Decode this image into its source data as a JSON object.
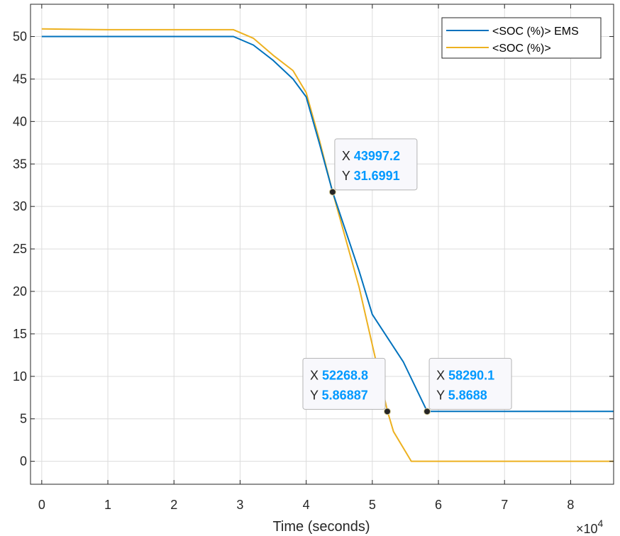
{
  "chart_data": {
    "type": "line",
    "title": "",
    "xlabel": "Time (seconds)",
    "ylabel": "",
    "x_exponent_label": "×10",
    "x_exponent_power": "4",
    "xlim": [
      -1700,
      86500
    ],
    "ylim": [
      -2.7,
      53.8
    ],
    "xticks": [
      0,
      10000,
      20000,
      30000,
      40000,
      50000,
      60000,
      70000,
      80000
    ],
    "xtick_labels": [
      "0",
      "1",
      "2",
      "3",
      "4",
      "5",
      "6",
      "7",
      "8"
    ],
    "yticks": [
      0,
      5,
      10,
      15,
      20,
      25,
      30,
      35,
      40,
      45,
      50
    ],
    "ytick_labels": [
      "0",
      "5",
      "10",
      "15",
      "20",
      "25",
      "30",
      "35",
      "40",
      "45",
      "50"
    ],
    "grid": true,
    "legend_position": "top-right",
    "series": [
      {
        "name": "<SOC (%)> EMS",
        "color": "#0072BD",
        "x": [
          0,
          29000,
          32000,
          35000,
          38000,
          40000,
          42000,
          44000,
          48000,
          50000,
          54700,
          58300,
          86500
        ],
        "y": [
          50,
          50,
          49,
          47.2,
          45,
          42.9,
          37.4,
          31.7,
          22.4,
          17.3,
          11.7,
          5.87,
          5.87
        ]
      },
      {
        "name": "<SOC (%)>",
        "color": "#EDB120",
        "x": [
          0,
          10000,
          20000,
          29000,
          32000,
          35000,
          38000,
          40000,
          42000,
          44000,
          48000,
          52300,
          53200,
          55900,
          86500
        ],
        "y": [
          50.9,
          50.8,
          50.8,
          50.8,
          49.8,
          47.8,
          46,
          43.4,
          37.8,
          31.7,
          20.5,
          5.87,
          3.5,
          0,
          0
        ]
      }
    ],
    "datatips": [
      {
        "x_label": "X",
        "x_value": "43997.2",
        "y_label": "Y",
        "y_value": "31.6991",
        "x": 43997.2,
        "y": 31.6991,
        "box_side": "right"
      },
      {
        "x_label": "X",
        "x_value": "52268.8",
        "y_label": "Y",
        "y_value": "5.86887",
        "x": 52268.8,
        "y": 5.86887,
        "box_side": "left"
      },
      {
        "x_label": "X",
        "x_value": "58290.1",
        "y_label": "Y",
        "y_value": "5.8688",
        "x": 58290.1,
        "y": 5.8688,
        "box_side": "right"
      }
    ],
    "colors": {
      "grid": "#dcdcdc",
      "axis": "#262626",
      "tick_text": "#262626",
      "datatip_value": "#0099ff",
      "datatip_label": "#262626",
      "datatip_bg": "#f8f8fc",
      "datatip_border": "#b4b4b4"
    }
  }
}
